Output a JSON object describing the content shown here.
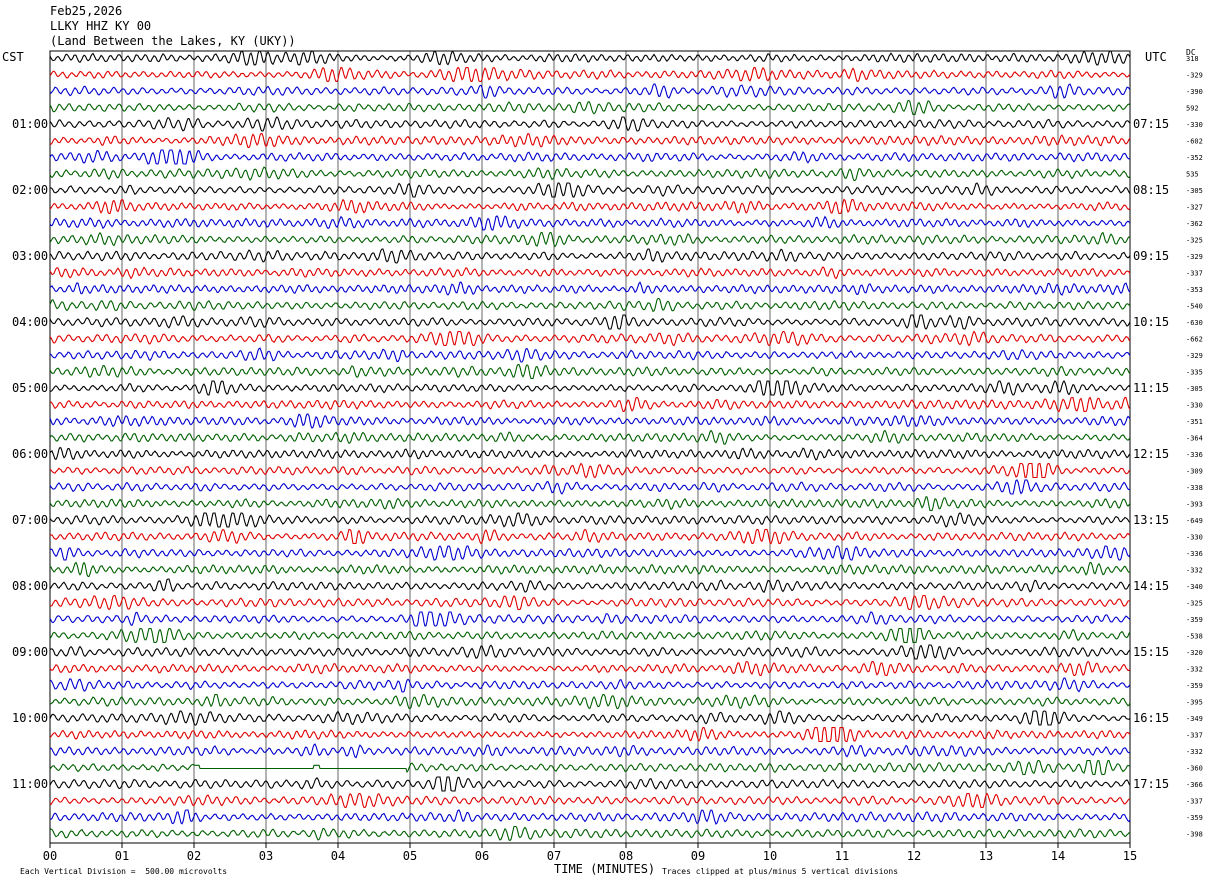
{
  "header": {
    "date": "Feb25,2026",
    "station": "LLKY HHZ KY 00",
    "location": "(Land Between the Lakes, KY (UKY))"
  },
  "corner_labels": {
    "left": "CST",
    "right": "UTC",
    "dc": "DC"
  },
  "footer": {
    "scale_note": "Each Vertical Division =  500.00 microvolts",
    "xlabel": "TIME (MINUTES)",
    "clip_note": "Traces clipped at plus/minus 5 vertical divisions"
  },
  "colors": {
    "cycle": [
      "#000000",
      "#e00000",
      "#0000d0",
      "#006000"
    ],
    "grid": "#000000"
  },
  "chart_data": {
    "type": "line",
    "title": "LLKY HHZ KY 00",
    "xlabel": "TIME (MINUTES)",
    "xlim": [
      0,
      15
    ],
    "x_ticks": [
      "00",
      "01",
      "02",
      "03",
      "04",
      "05",
      "06",
      "07",
      "08",
      "09",
      "10",
      "11",
      "12",
      "13",
      "14",
      "15"
    ],
    "left_hour_labels": [
      "01:00",
      "02:00",
      "03:00",
      "04:00",
      "05:00",
      "06:00",
      "07:00",
      "08:00",
      "09:00",
      "10:00",
      "11:00"
    ],
    "right_hour_labels": [
      "07:15",
      "08:15",
      "09:15",
      "10:15",
      "11:15",
      "12:15",
      "13:15",
      "14:15",
      "15:15",
      "16:15",
      "17:15"
    ],
    "trace_count": 48,
    "traces_per_hour": 4,
    "first_labeled_trace_index": 4,
    "color_cycle": [
      "black",
      "red",
      "blue",
      "green"
    ],
    "dc_offsets": [
      318,
      -329,
      -390,
      592,
      -330,
      -602,
      -352,
      535,
      -305,
      -327,
      -362,
      -325,
      -329,
      -337,
      -353,
      -540,
      -630,
      -662,
      -329,
      -335,
      -305,
      -330,
      -351,
      -364,
      -336,
      -309,
      -338,
      -393,
      -649,
      -330,
      -336,
      -332,
      -340,
      -325,
      -359,
      -538,
      -320,
      -332,
      -359,
      -395,
      -349,
      -337,
      -332,
      -360,
      -366,
      -337,
      -359,
      -398
    ],
    "gap": {
      "trace_index": 43,
      "x_start": 2.0,
      "x_end": 4.95
    },
    "amplitude_scale_microvolts_per_division": 500.0,
    "clip_divisions": 5
  }
}
